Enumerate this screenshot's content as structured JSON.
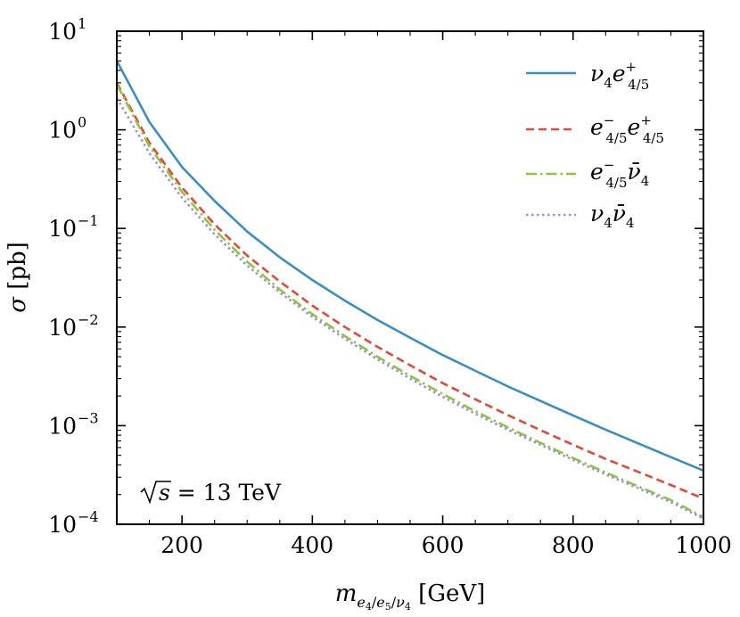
{
  "chart_data": {
    "type": "line",
    "xlabel": "m_{e4/e5/ν4} [GeV]",
    "ylabel": "σ [pb]",
    "xlim": [
      100,
      1000
    ],
    "ylim": [
      0.0001,
      10
    ],
    "yscale": "log",
    "x_ticks": [
      "200",
      "400",
      "600",
      "800",
      "1000"
    ],
    "y_ticks": [
      {
        "base": "10",
        "exp": "1"
      },
      {
        "base": "10",
        "exp": "0"
      },
      {
        "base": "10",
        "exp": "−1"
      },
      {
        "base": "10",
        "exp": "−2"
      },
      {
        "base": "10",
        "exp": "−3"
      },
      {
        "base": "10",
        "exp": "−4"
      }
    ],
    "annotation": "√s = 13 TeV",
    "grid": false,
    "legend_position": "top-right",
    "x": [
      100,
      150,
      200,
      250,
      300,
      350,
      400,
      450,
      500,
      550,
      600,
      650,
      700,
      750,
      800,
      850,
      900,
      950,
      1000
    ],
    "series": [
      {
        "name": "ν4 e+4/5",
        "color": "#3a8fbf",
        "style": "solid",
        "values": [
          5.0,
          1.2,
          0.42,
          0.19,
          0.093,
          0.051,
          0.03,
          0.0185,
          0.0118,
          0.0078,
          0.0052,
          0.0036,
          0.0025,
          0.00178,
          0.00127,
          0.00091,
          0.00066,
          0.00048,
          0.00035
        ]
      },
      {
        "name": "e−4/5 e+4/5",
        "color": "#e04a3a",
        "style": "dashed",
        "values": [
          3.0,
          0.74,
          0.26,
          0.11,
          0.053,
          0.029,
          0.0165,
          0.01,
          0.0063,
          0.0041,
          0.0027,
          0.00185,
          0.00128,
          0.0009,
          0.00064,
          0.00046,
          0.00034,
          0.00025,
          0.000182
        ]
      },
      {
        "name": "e−4/5 ν̄4",
        "color": "#8ec43e",
        "style": "dashdot",
        "values": [
          2.9,
          0.68,
          0.235,
          0.097,
          0.046,
          0.024,
          0.0135,
          0.0081,
          0.005,
          0.0032,
          0.0021,
          0.0014,
          0.00096,
          0.00067,
          0.00047,
          0.000335,
          0.000242,
          0.000176,
          0.000118
        ]
      },
      {
        "name": "ν4 ν̄4",
        "color": "#9b8fe0",
        "style": "dotted",
        "values": [
          2.1,
          0.58,
          0.205,
          0.087,
          0.042,
          0.0225,
          0.0127,
          0.0076,
          0.0047,
          0.003,
          0.00196,
          0.00132,
          0.00091,
          0.00064,
          0.00045,
          0.00032,
          0.000232,
          0.000168,
          0.000114
        ]
      }
    ]
  }
}
